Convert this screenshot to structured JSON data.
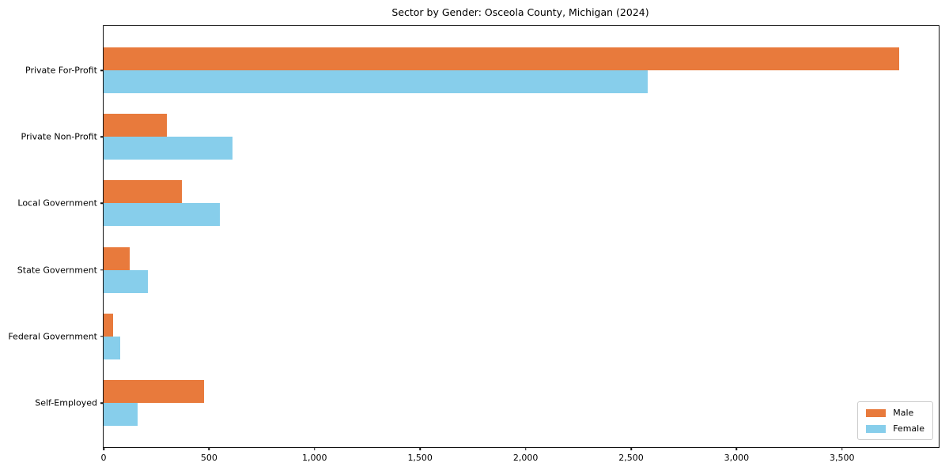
{
  "figure": {
    "title": "Sector by Gender: Osceola County, Michigan (2024)"
  },
  "chart_data": {
    "type": "bar",
    "orientation": "horizontal",
    "title": "Sector by Gender: Osceola County, Michigan (2024)",
    "categories": [
      "Private For-Profit",
      "Private Non-Profit",
      "Local Government",
      "State Government",
      "Federal Government",
      "Self-Employed"
    ],
    "series": [
      {
        "name": "Male",
        "color": "#e87a3c",
        "values": [
          3770,
          300,
          370,
          125,
          45,
          475
        ]
      },
      {
        "name": "Female",
        "color": "#87ceeb",
        "values": [
          2580,
          610,
          550,
          210,
          80,
          160
        ]
      }
    ],
    "xlabel": "",
    "ylabel": "",
    "xlim": [
      0,
      3958
    ],
    "x_ticks": [
      0,
      500,
      1000,
      1500,
      2000,
      2500,
      3000,
      3500
    ],
    "x_tick_labels": [
      "0",
      "500",
      "1,000",
      "1,500",
      "2,000",
      "2,500",
      "3,000",
      "3,500"
    ],
    "grid": false,
    "legend": {
      "position": "lower right",
      "entries": [
        {
          "label": "Male",
          "color": "#e87a3c"
        },
        {
          "label": "Female",
          "color": "#87ceeb"
        }
      ]
    }
  }
}
